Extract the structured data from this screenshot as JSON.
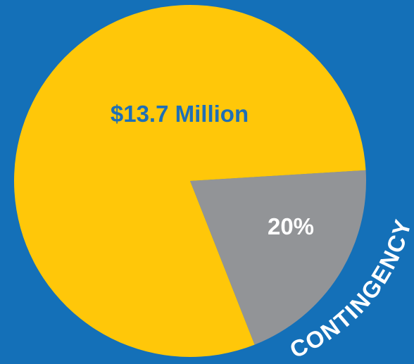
{
  "chart_data": {
    "type": "pie",
    "slices": [
      {
        "label": "$13.7 Million",
        "value": 80,
        "color": "#ffc709",
        "label_color": "#1e6fb6"
      },
      {
        "label": "20%",
        "value": 20,
        "color": "#929497",
        "label_color": "#ffffff",
        "annotation": "CONTINGENCY"
      }
    ]
  },
  "colors": {
    "background": "#1470b8",
    "annotation": "#ffffff"
  }
}
